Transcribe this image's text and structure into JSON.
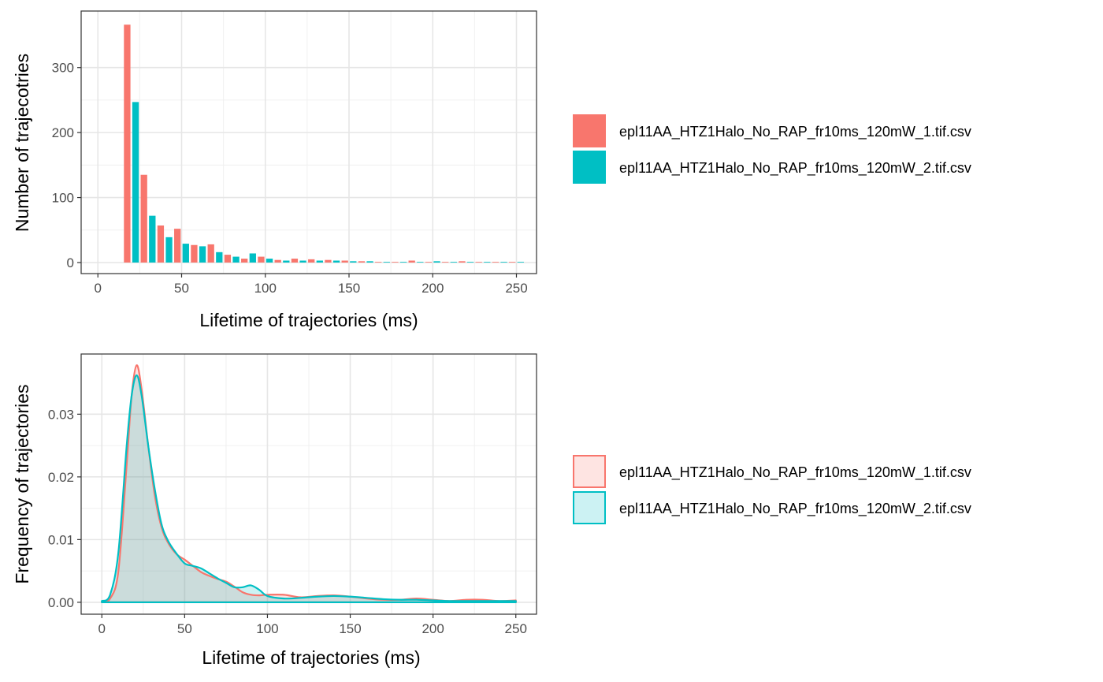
{
  "chart_data": [
    {
      "type": "bar",
      "xlabel": "Lifetime of trajectories (ms)",
      "ylabel": "Number of trajecotries",
      "xlim": [
        -10,
        262
      ],
      "ylim": [
        -17,
        387
      ],
      "x_ticks": [
        0,
        50,
        100,
        150,
        200,
        250
      ],
      "y_ticks": [
        0,
        100,
        200,
        300
      ],
      "grid": true,
      "legend_position": "right",
      "bin_width": 10,
      "x": [
        20,
        30,
        40,
        50,
        60,
        70,
        80,
        90,
        100,
        110,
        120,
        130,
        140,
        150,
        160,
        170,
        180,
        190,
        200,
        210,
        220,
        230,
        240,
        250
      ],
      "series": [
        {
          "name": "epl11AA_HTZ1Halo_No_RAP_fr10ms_120mW_1.tif.csv",
          "color": "#F8766D",
          "values": [
            366,
            135,
            57,
            52,
            27,
            28,
            12,
            6,
            9,
            4,
            6,
            5,
            4,
            3,
            2,
            1,
            1,
            3,
            1,
            1,
            2,
            1,
            1,
            1
          ]
        },
        {
          "name": "epl11AA_HTZ1Halo_No_RAP_fr10ms_120mW_2.tif.csv",
          "color": "#00BFC4",
          "values": [
            247,
            72,
            39,
            29,
            25,
            16,
            9,
            14,
            6,
            3,
            3,
            3,
            3,
            2,
            2,
            1,
            1,
            1,
            2,
            1,
            1,
            1,
            1,
            1
          ]
        }
      ]
    },
    {
      "type": "area",
      "xlabel": "Lifetime of trajectories (ms)",
      "ylabel": "Frequency of trajectories",
      "xlim": [
        -12.5,
        262.5
      ],
      "ylim": [
        -0.0019,
        0.0396
      ],
      "x_ticks": [
        0,
        50,
        100,
        150,
        200,
        250
      ],
      "y_ticks": [
        0.0,
        0.01,
        0.02,
        0.03
      ],
      "y_tick_labels": [
        "0.00",
        "0.01",
        "0.02",
        "0.03"
      ],
      "grid": true,
      "legend_position": "right",
      "fill_opacity": 0.2,
      "series": [
        {
          "name": "epl11AA_HTZ1Halo_No_RAP_fr10ms_120mW_1.tif.csv",
          "color": "#F8766D",
          "x": [
            0,
            5,
            10,
            15,
            18,
            21,
            24,
            28,
            32,
            36,
            40,
            45,
            50,
            55,
            60,
            65,
            70,
            75,
            80,
            85,
            90,
            95,
            100,
            110,
            120,
            130,
            140,
            150,
            160,
            170,
            180,
            190,
            200,
            210,
            220,
            230,
            240,
            250
          ],
          "y": [
            0.0001,
            0.0006,
            0.005,
            0.022,
            0.033,
            0.0378,
            0.034,
            0.025,
            0.017,
            0.012,
            0.0095,
            0.0077,
            0.0068,
            0.0058,
            0.0048,
            0.0042,
            0.0037,
            0.0033,
            0.0025,
            0.0016,
            0.0012,
            0.0011,
            0.0012,
            0.0012,
            0.0008,
            0.001,
            0.0011,
            0.0009,
            0.0006,
            0.0004,
            0.0004,
            0.0006,
            0.0004,
            0.0002,
            0.0004,
            0.0004,
            0.0002,
            0.0003
          ]
        },
        {
          "name": "epl11AA_HTZ1Halo_No_RAP_fr10ms_120mW_2.tif.csv",
          "color": "#00BFC4",
          "x": [
            0,
            5,
            10,
            15,
            18,
            21,
            24,
            28,
            32,
            36,
            40,
            45,
            50,
            55,
            60,
            65,
            70,
            75,
            80,
            85,
            90,
            95,
            100,
            110,
            120,
            130,
            140,
            150,
            160,
            170,
            180,
            190,
            200,
            210,
            220,
            230,
            240,
            250
          ],
          "y": [
            0.0002,
            0.0012,
            0.008,
            0.025,
            0.033,
            0.0362,
            0.033,
            0.025,
            0.018,
            0.0125,
            0.0098,
            0.0078,
            0.0062,
            0.0058,
            0.0054,
            0.0046,
            0.0038,
            0.0031,
            0.0024,
            0.0024,
            0.0027,
            0.002,
            0.001,
            0.0006,
            0.0007,
            0.0009,
            0.001,
            0.0009,
            0.0007,
            0.0005,
            0.0004,
            0.0004,
            0.0003,
            0.0002,
            0.0002,
            0.0002,
            0.0002,
            0.0002
          ]
        }
      ]
    }
  ]
}
